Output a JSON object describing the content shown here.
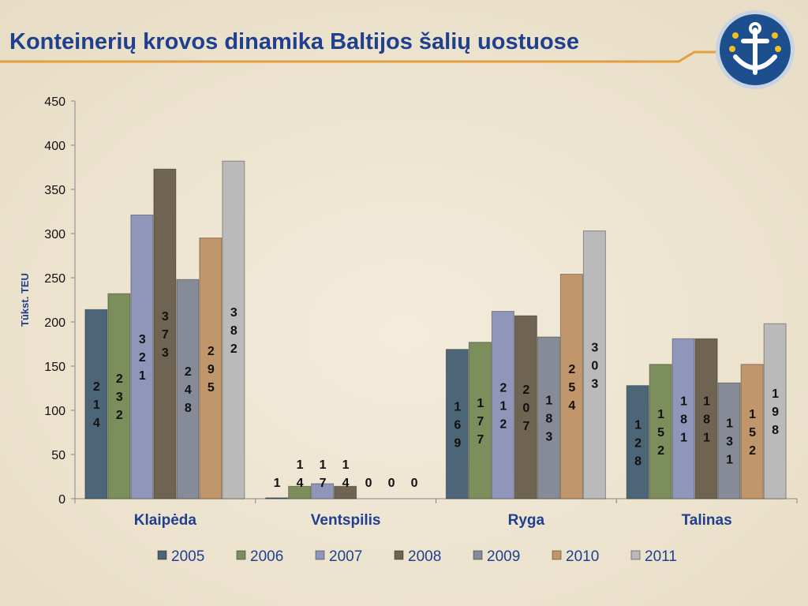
{
  "chart_data": {
    "type": "bar",
    "title": "Konteinerių krovos dinamika Baltijos šalių uostuose",
    "y_label": "Tūkst. TEU",
    "categories": [
      "Klaipėda",
      "Ventspilis",
      "Ryga",
      "Talinas"
    ],
    "series": [
      {
        "name": "2005",
        "color": "#4d6677",
        "values": [
          214,
          1,
          169,
          128
        ]
      },
      {
        "name": "2006",
        "color": "#7b8e5c",
        "values": [
          232,
          14,
          177,
          152
        ]
      },
      {
        "name": "2007",
        "color": "#9096ba",
        "values": [
          321,
          17,
          212,
          181
        ]
      },
      {
        "name": "2008",
        "color": "#6f6451",
        "values": [
          373,
          14,
          207,
          181
        ]
      },
      {
        "name": "2009",
        "color": "#868b97",
        "values": [
          248,
          0,
          183,
          131
        ]
      },
      {
        "name": "2010",
        "color": "#c2966b",
        "values": [
          295,
          0,
          254,
          152
        ]
      },
      {
        "name": "2011",
        "color": "#bababa",
        "values": [
          382,
          0,
          303,
          198
        ]
      }
    ],
    "ylim": [
      0,
      450
    ],
    "yticks": [
      0,
      50,
      100,
      150,
      200,
      250,
      300,
      350,
      400,
      450
    ],
    "legend": "bottom"
  }
}
